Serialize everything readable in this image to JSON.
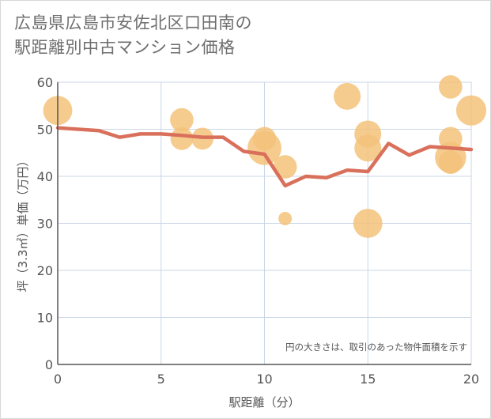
{
  "title_line1": "広島県広島市安佐北区口田南の",
  "title_line2": "駅距離別中古マンション価格",
  "chart_data": {
    "type": "scatter",
    "title": "広島県広島市安佐北区口田南の駅距離別中古マンション価格",
    "xlabel": "駅距離（分）",
    "ylabel": "坪（3.3㎡）単価（万円）",
    "xlim": [
      0,
      20
    ],
    "ylim": [
      0,
      60
    ],
    "xticks": [
      0,
      5,
      10,
      15,
      20
    ],
    "yticks": [
      0,
      10,
      20,
      30,
      40,
      50,
      60
    ],
    "grid": true,
    "note": "円の大きさは、取引のあった物件面積を示す",
    "colors": {
      "bubble": "#f3c27a",
      "line": "#d9705b",
      "grid": "#c9d7e6",
      "axis": "#555555"
    },
    "bubbles": [
      {
        "x": 0,
        "y": 54,
        "size": 70
      },
      {
        "x": 6,
        "y": 52,
        "size": 45
      },
      {
        "x": 6,
        "y": 48,
        "size": 42
      },
      {
        "x": 7,
        "y": 48,
        "size": 40
      },
      {
        "x": 10,
        "y": 48,
        "size": 45
      },
      {
        "x": 10,
        "y": 46,
        "size": 95
      },
      {
        "x": 11,
        "y": 42,
        "size": 45
      },
      {
        "x": 11,
        "y": 31,
        "size": 15
      },
      {
        "x": 14,
        "y": 57,
        "size": 60
      },
      {
        "x": 15,
        "y": 49,
        "size": 60
      },
      {
        "x": 15,
        "y": 46,
        "size": 60
      },
      {
        "x": 15,
        "y": 30,
        "size": 70
      },
      {
        "x": 19,
        "y": 59,
        "size": 45
      },
      {
        "x": 19,
        "y": 48,
        "size": 45
      },
      {
        "x": 19,
        "y": 44,
        "size": 80
      },
      {
        "x": 19,
        "y": 43,
        "size": 45
      },
      {
        "x": 20,
        "y": 54,
        "size": 75
      }
    ],
    "trend_line": {
      "x": [
        0,
        1,
        2,
        3,
        4,
        5,
        6,
        7,
        8,
        9,
        10,
        11,
        12,
        13,
        14,
        15,
        16,
        17,
        18,
        19,
        20
      ],
      "y": [
        50.3,
        50.0,
        49.7,
        48.3,
        49.0,
        49.0,
        48.7,
        48.3,
        48.3,
        45.3,
        44.7,
        38.0,
        40.0,
        39.7,
        41.3,
        41.0,
        47.0,
        44.5,
        46.3,
        46.0,
        45.7
      ]
    }
  }
}
